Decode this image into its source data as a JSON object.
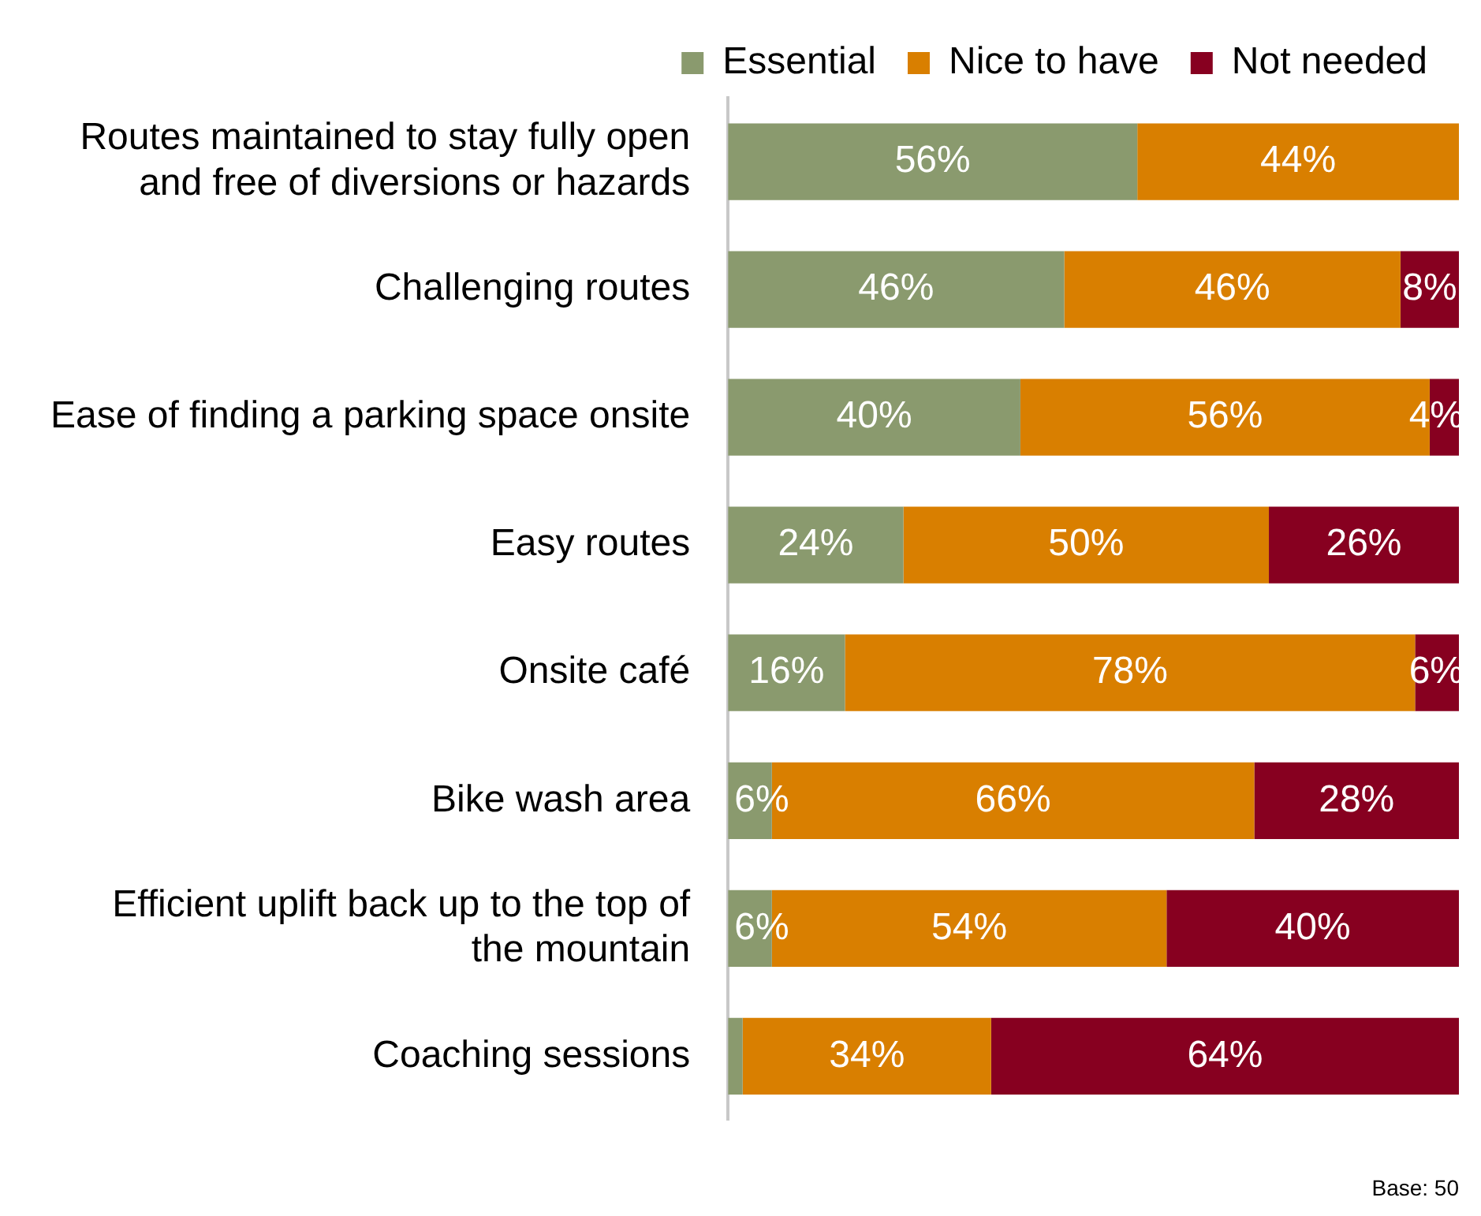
{
  "chart_data": {
    "type": "bar",
    "orientation": "horizontal",
    "stacked": true,
    "legend": "top",
    "grid": false,
    "categories": [
      "Routes maintained to stay fully open and free of diversions or hazards",
      "Challenging routes",
      "Ease of finding a parking space onsite",
      "Easy routes",
      "Onsite café",
      "Bike wash area",
      "Efficient uplift back up to the top of the mountain",
      "Coaching sessions"
    ],
    "series": [
      {
        "name": "Essential",
        "color": "#8a9a6e",
        "values": [
          56,
          46,
          40,
          24,
          16,
          6,
          6,
          2
        ],
        "value_labels": [
          "56%",
          "46%",
          "40%",
          "24%",
          "16%",
          "6%",
          "6%",
          null
        ]
      },
      {
        "name": "Nice to have",
        "color": "#d97f00",
        "values": [
          44,
          46,
          56,
          50,
          78,
          66,
          54,
          34
        ],
        "value_labels": [
          "44%",
          "46%",
          "56%",
          "50%",
          "78%",
          "66%",
          "54%",
          "34%"
        ]
      },
      {
        "name": "Not needed",
        "color": "#870020",
        "values": [
          0,
          8,
          4,
          26,
          6,
          28,
          40,
          64
        ],
        "value_labels": [
          null,
          "8%",
          "4%",
          "26%",
          "6%",
          "28%",
          "40%",
          "64%"
        ]
      }
    ],
    "annotations": [
      "Base: 50"
    ]
  }
}
